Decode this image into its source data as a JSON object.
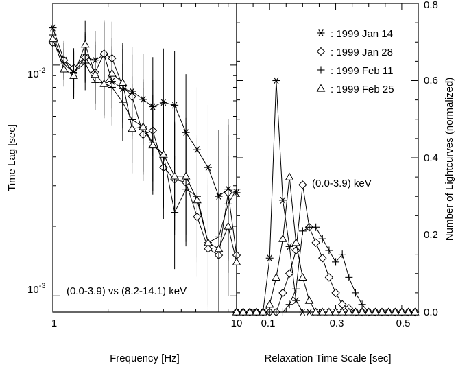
{
  "chart_data": [
    {
      "type": "line",
      "panel": "left",
      "xlabel": "Frequency [Hz]",
      "ylabel": "Time Lag [sec]",
      "xscale": "log",
      "yscale": "log",
      "xlim": [
        1,
        10
      ],
      "ylim": [
        0.00085,
        0.0185
      ],
      "x_tick_labels": [
        "1",
        "10"
      ],
      "y_tick_labels": [
        {
          "base": "10",
          "exp": "-2",
          "value": 0.01
        },
        {
          "base": "10",
          "exp": "-3",
          "value": 0.001
        }
      ],
      "annotation": "(0.0-3.9) vs (8.2-14.1) keV",
      "x": [
        1.0,
        1.15,
        1.3,
        1.5,
        1.7,
        1.9,
        2.1,
        2.4,
        2.7,
        3.1,
        3.5,
        4.0,
        4.6,
        5.3,
        6.1,
        7.0,
        8.0,
        9.0,
        10.0
      ],
      "series": [
        {
          "name": "1999 Jan 14",
          "marker": "asterisk",
          "values": [
            0.0145,
            0.0105,
            0.0092,
            0.0108,
            0.0105,
            0.0111,
            0.0085,
            0.0079,
            0.0077,
            0.0071,
            0.0066,
            0.0069,
            0.0067,
            0.0051,
            0.0043,
            0.0036,
            0.0027,
            0.0029,
            0.0028
          ]
        },
        {
          "name": "1999 Jan 28",
          "marker": "diamond",
          "values": [
            0.0125,
            0.0105,
            0.0097,
            0.0108,
            0.0093,
            0.0112,
            0.0107,
            0.0081,
            0.0073,
            0.005,
            0.0052,
            0.0036,
            0.0032,
            0.0031,
            0.0022,
            0.0016,
            0.0015,
            0.0028,
            0.0015
          ]
        },
        {
          "name": "1999 Feb 11",
          "marker": "plus",
          "values": [
            0.0135,
            0.0101,
            0.0093,
            0.0102,
            0.0084,
            0.0084,
            0.008,
            0.0069,
            0.0058,
            0.0054,
            0.0046,
            0.0041,
            0.0023,
            0.0029,
            0.0027,
            0.0017,
            0.0018,
            0.0025,
            0.0029
          ]
        },
        {
          "name": "1999 Feb 25",
          "marker": "triangle",
          "values": [
            0.013,
            0.0096,
            0.009,
            0.0123,
            0.0091,
            0.0083,
            0.0092,
            0.0084,
            0.0053,
            0.0054,
            0.0045,
            0.0041,
            0.0033,
            0.0033,
            0.0026,
            0.0017,
            0.0016,
            0.002,
            0.0014
          ]
        }
      ]
    },
    {
      "type": "line",
      "panel": "right",
      "xlabel": "Relaxation Time Scale [sec]",
      "ylabel": "Number of Lightcurves (normalized)",
      "xlim": [
        0.0,
        0.55
      ],
      "ylim": [
        0.0,
        0.8
      ],
      "x_ticks": [
        0.1,
        0.3,
        0.5
      ],
      "x_tick_labels": [
        "0.1",
        "0.3",
        "0.5"
      ],
      "y_ticks": [
        0.0,
        0.2,
        0.4,
        0.6,
        0.8
      ],
      "y_tick_labels": [
        "0.0",
        "0.2",
        "0.4",
        "0.6",
        "0.8"
      ],
      "annotation": "(0.0-3.9) keV",
      "legend_position": "top-right",
      "x": [
        0.0,
        0.02,
        0.04,
        0.06,
        0.08,
        0.1,
        0.12,
        0.14,
        0.16,
        0.18,
        0.2,
        0.22,
        0.24,
        0.26,
        0.28,
        0.3,
        0.32,
        0.34,
        0.36,
        0.38,
        0.4,
        0.42,
        0.44,
        0.46,
        0.48,
        0.5,
        0.52,
        0.54
      ],
      "series": [
        {
          "name": "1999 Jan 14",
          "marker": "asterisk",
          "values": [
            0,
            0,
            0,
            0,
            0,
            0.14,
            0.6,
            0.29,
            0.17,
            0.03,
            0,
            0,
            0,
            0,
            0,
            0,
            0,
            0,
            0,
            0,
            0,
            0,
            0,
            0,
            0,
            0,
            0,
            0
          ]
        },
        {
          "name": "1999 Jan 28",
          "marker": "diamond",
          "values": [
            0,
            0,
            0,
            0,
            0,
            0,
            0,
            0.05,
            0.1,
            0.16,
            0.33,
            0.22,
            0.18,
            0.14,
            0.09,
            0.05,
            0.02,
            0.01,
            0,
            0,
            0,
            0,
            0,
            0,
            0,
            0,
            0,
            0
          ]
        },
        {
          "name": "1999 Feb 11",
          "marker": "plus",
          "values": [
            0,
            0,
            0,
            0,
            0,
            0,
            0,
            0,
            0.02,
            0.06,
            0.21,
            0.22,
            0.22,
            0.19,
            0.16,
            0.13,
            0.15,
            0.09,
            0.05,
            0.02,
            0,
            0,
            0,
            0,
            0,
            0,
            0,
            0
          ]
        },
        {
          "name": "1999 Feb 25",
          "marker": "triangle",
          "values": [
            0,
            0,
            0,
            0,
            0,
            0.02,
            0.09,
            0.19,
            0.35,
            0.18,
            0.09,
            0.03,
            0,
            0,
            0,
            0,
            0,
            0,
            0,
            0,
            0,
            0,
            0,
            0,
            0,
            0,
            0,
            0
          ]
        }
      ]
    }
  ]
}
